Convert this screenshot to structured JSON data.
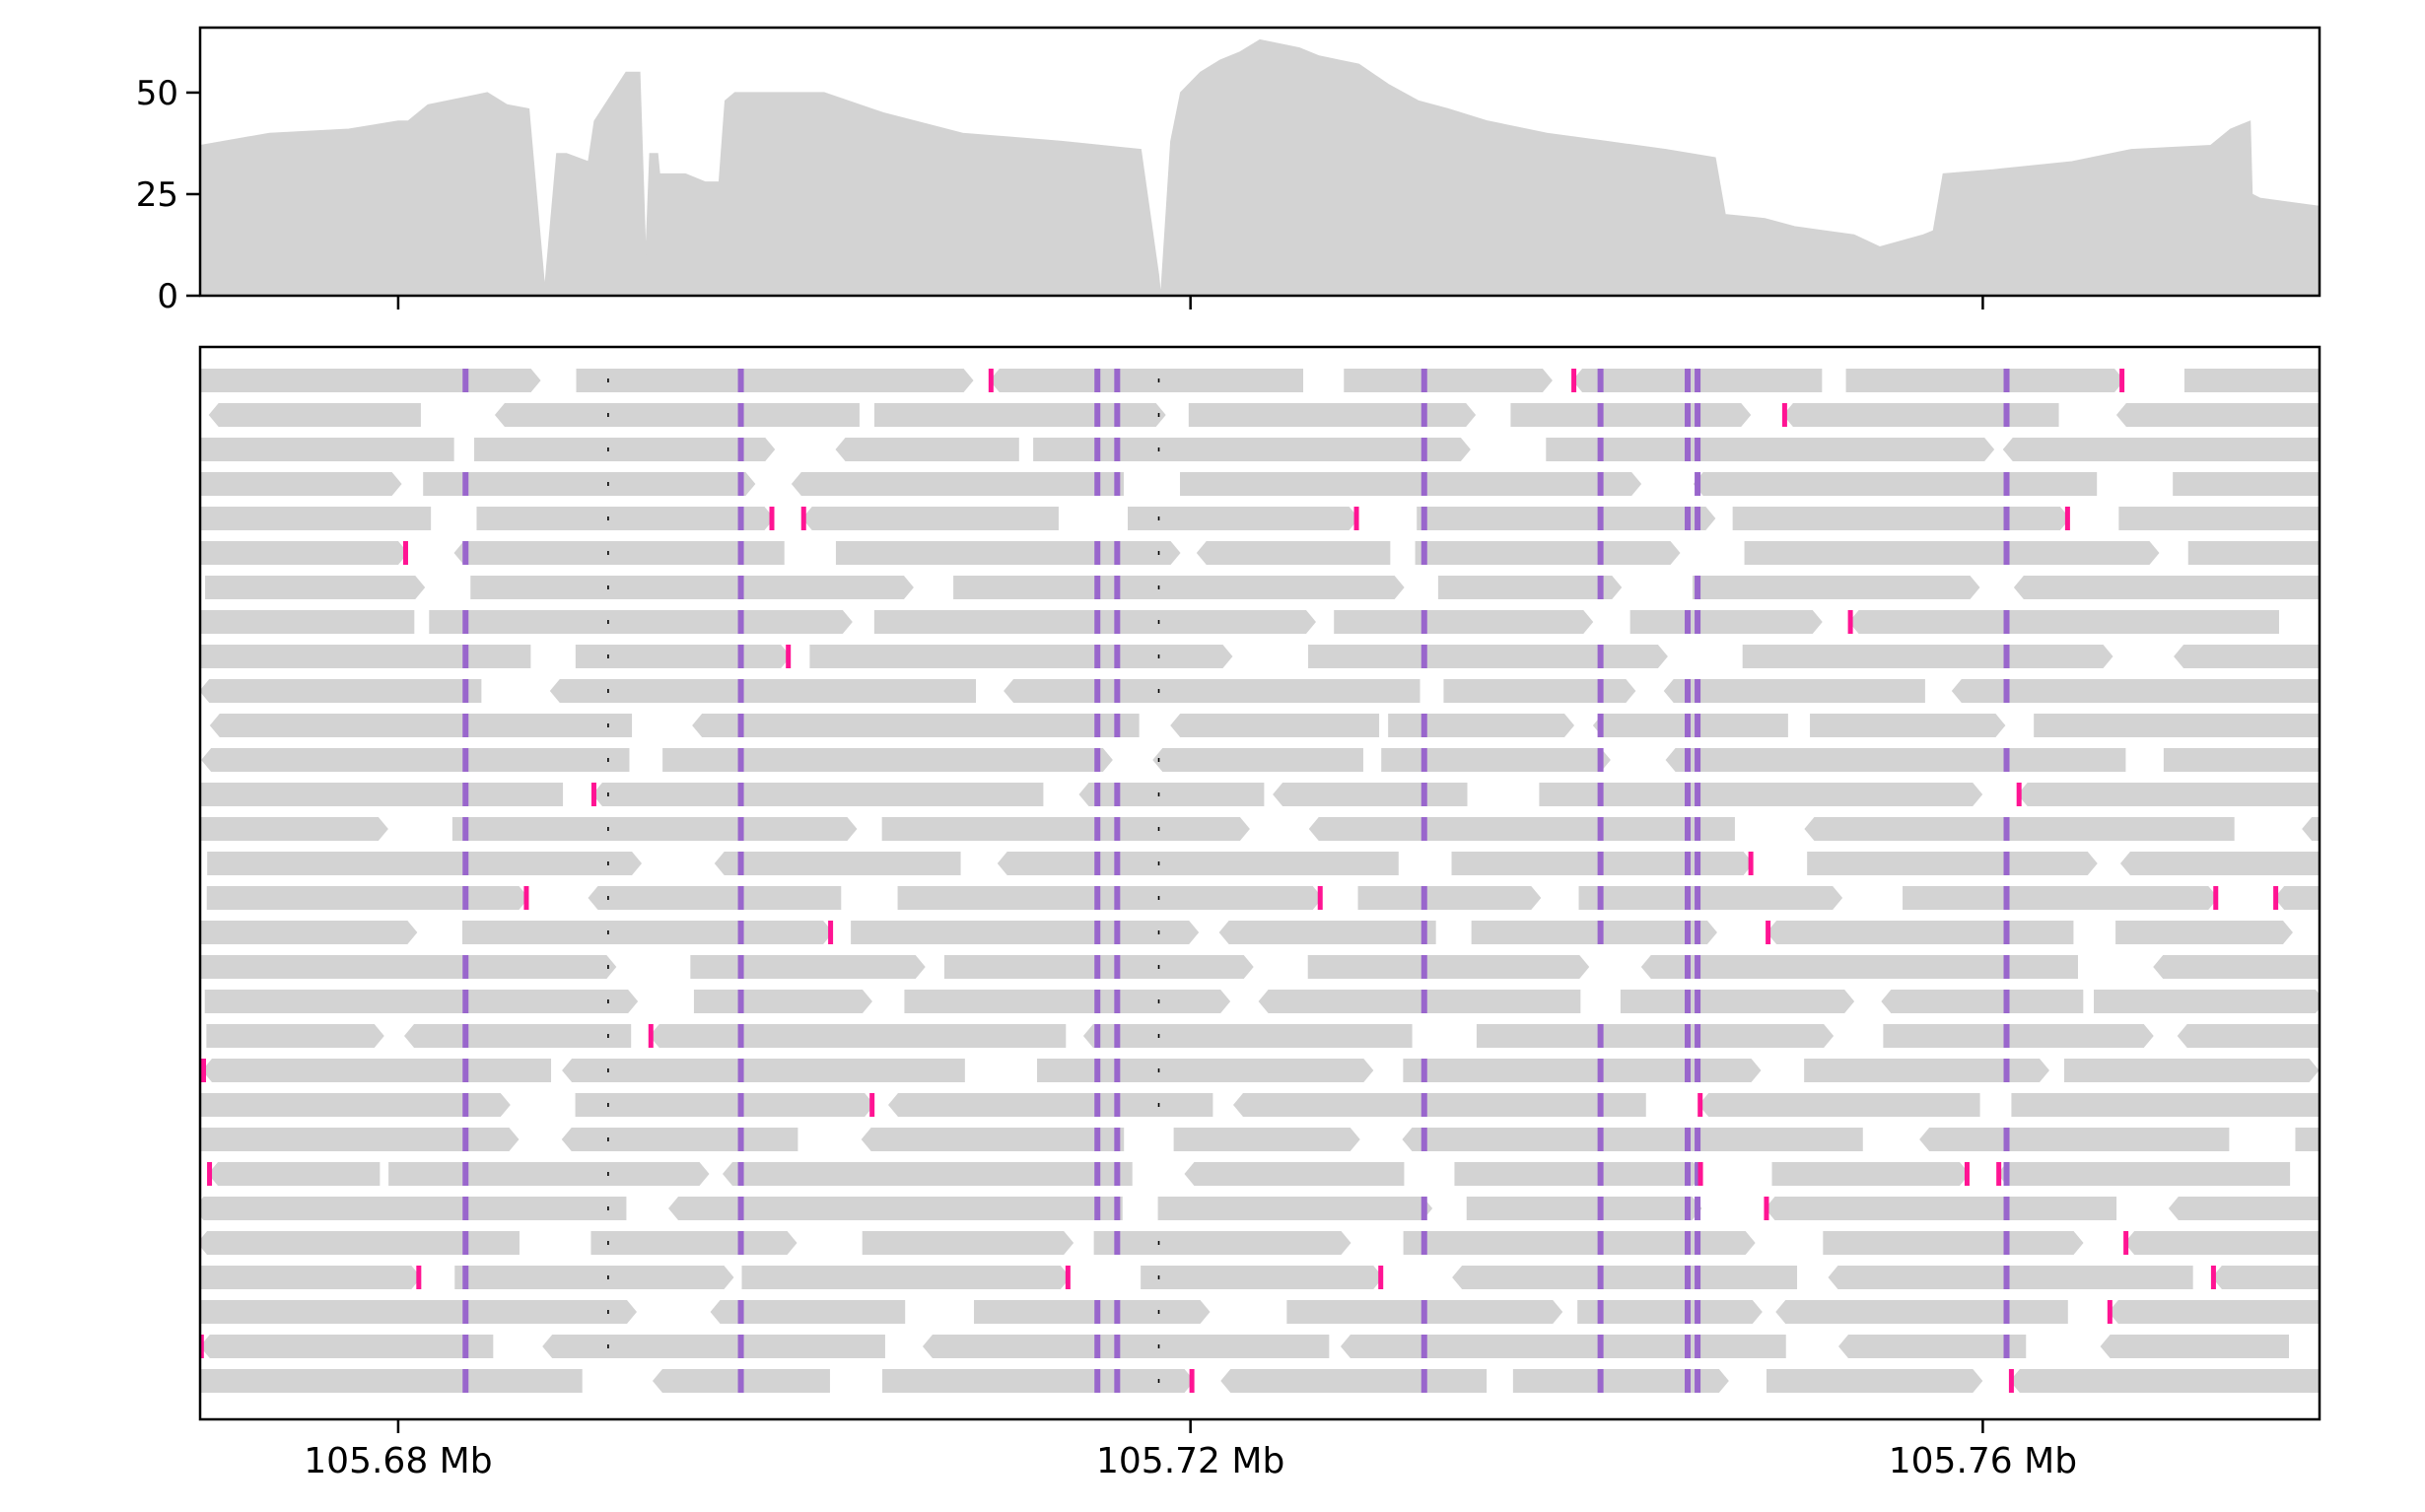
{
  "chart_data": [
    {
      "type": "area",
      "panel": "coverage",
      "xlim": [
        105.67,
        105.777
      ],
      "ylim": [
        0,
        66
      ],
      "yticks": [
        0,
        25,
        50
      ],
      "ytick_labels": [
        "0",
        "25",
        "50"
      ],
      "xticks": [
        105.68,
        105.72,
        105.76
      ],
      "show_xtick_labels": false,
      "grid": false,
      "fill_color": "#d3d3d3",
      "x": [
        105.67,
        105.6735,
        105.6775,
        105.68,
        105.6805,
        105.6815,
        105.6825,
        105.6835,
        105.6845,
        105.6855,
        105.6866,
        105.6874,
        105.688,
        105.6885,
        105.6896,
        105.6899,
        105.6915,
        105.6922,
        105.6925,
        105.6927,
        105.6931,
        105.6932,
        105.6945,
        105.6955,
        105.6962,
        105.6965,
        105.697,
        105.699,
        105.7015,
        105.7045,
        105.7085,
        105.7135,
        105.7175,
        105.7184,
        105.7185,
        105.719,
        105.7195,
        105.7205,
        105.7215,
        105.7225,
        105.7235,
        105.7245,
        105.7255,
        105.7265,
        105.7275,
        105.7285,
        105.73,
        105.7315,
        105.733,
        105.735,
        105.738,
        105.741,
        105.744,
        105.7465,
        105.747,
        105.749,
        105.7505,
        105.752,
        105.7535,
        105.7548,
        105.757,
        105.7575,
        105.758,
        105.7605,
        105.7645,
        105.7675,
        105.7715,
        105.7725,
        105.7735,
        105.7736,
        105.774,
        105.7755,
        105.777
      ],
      "y": [
        37,
        40,
        41,
        43,
        43,
        47,
        48,
        49,
        50,
        47,
        46,
        2,
        35,
        35,
        33,
        43,
        55,
        55,
        10,
        35,
        35,
        30,
        30,
        28,
        28,
        48,
        50,
        50,
        50,
        45,
        40,
        38,
        36,
        5,
        0,
        38,
        50,
        55,
        58,
        60,
        63,
        62,
        61,
        59,
        58,
        57,
        52,
        48,
        46,
        43,
        40,
        38,
        36,
        34,
        20,
        19,
        17,
        16,
        15,
        12,
        15,
        16,
        30,
        31,
        33,
        36,
        37,
        41,
        43,
        25,
        24,
        23,
        22
      ]
    },
    {
      "type": "scatter",
      "panel": "alignments",
      "xlim": [
        105.67,
        105.777
      ],
      "xticks": [
        105.68,
        105.72,
        105.76
      ],
      "xtick_labels": [
        "105.68 Mb",
        "105.72 Mb",
        "105.76 Mb"
      ],
      "row_count": 30,
      "read_color": "#d3d3d3",
      "mismatch_color": "#9966cc",
      "clip_color": "#ff1493",
      "mismatch_positions": [
        105.6834,
        105.6973,
        105.7153,
        105.7163,
        105.7318,
        105.7407,
        105.7451,
        105.7456,
        105.7612
      ],
      "gap_positions": [
        105.6906,
        105.7184
      ]
    }
  ]
}
